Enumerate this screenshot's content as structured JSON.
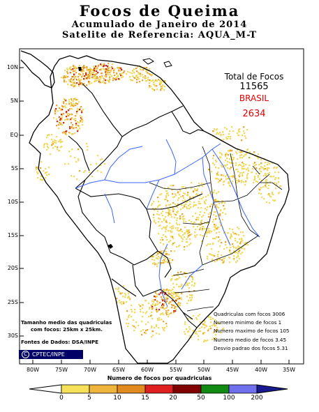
{
  "title": {
    "main": "Focos de Queima",
    "accumulated": "Acumulado de Janeiro de 2014",
    "satellite": "Satelite de Referencia: AQUA_M-T"
  },
  "totals": {
    "label": "Total de Focos",
    "value": "11565",
    "brasil_label": "BRASIL",
    "brasil_value": "2634"
  },
  "stats": [
    "Quadriculas com focos 3006",
    "Numero minimo de focos 1",
    "Numero maximo de focos 105",
    "Numero medio de focos 3.45",
    "Desvio padrao dos focos 5.31"
  ],
  "grid_info": {
    "size_title": "Tamanho medio das quadriculas",
    "size_value": "com focos: 25km  x  25km.",
    "sources": "Fontes de Dados: DSA/INPE"
  },
  "logo": {
    "symbol": "C",
    "text": "CPTEC/INPE"
  },
  "lat_labels": [
    "10N",
    "5N",
    "EQ",
    "5S",
    "10S",
    "15S",
    "20S",
    "25S",
    "30S"
  ],
  "lon_labels": [
    "80W",
    "75W",
    "70W",
    "65W",
    "60W",
    "55W",
    "50W",
    "45W",
    "40W",
    "35W"
  ],
  "legend": {
    "title": "Numero de focos por quadriculas",
    "ticks": [
      "0",
      "5",
      "10",
      "15",
      "20",
      "50",
      "100",
      "200"
    ],
    "colors": [
      "#f5e05a",
      "#eeb43c",
      "#e08a20",
      "#e02020",
      "#800000",
      "#108a10",
      "#7070ee",
      "#1a1a90"
    ]
  },
  "colors": {
    "river": "#3a64ff",
    "fire_low": "#f0dc64",
    "fire_mid": "#e8a838",
    "fire_high": "#c83020",
    "border": "#000000"
  }
}
